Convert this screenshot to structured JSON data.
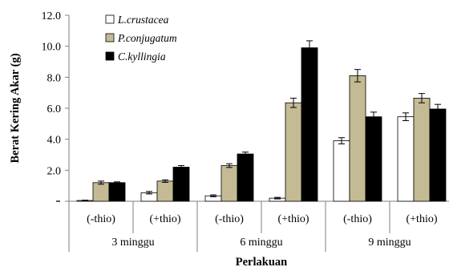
{
  "chart_data": {
    "type": "bar",
    "ylabel": "Berat Kering Akar (g)",
    "xlabel": "Perlakuan",
    "ylim": [
      0,
      12
    ],
    "yticks": [
      0,
      2,
      4,
      6,
      8,
      10,
      12
    ],
    "ytick_labels": [
      "-",
      "2.0",
      "4.0",
      "6.0",
      "8.0",
      "10.0",
      "12.0"
    ],
    "grid": false,
    "legend_position": "top-left",
    "groups": [
      {
        "label": "3 minggu",
        "categories": [
          "(-thio)",
          "(+thio)"
        ]
      },
      {
        "label": "6 minggu",
        "categories": [
          "(-thio)",
          "(+thio)"
        ]
      },
      {
        "label": "9 minggu",
        "categories": [
          "(-thio)",
          "(+thio)"
        ]
      }
    ],
    "series": [
      {
        "name": "L.crustacea",
        "color": "#ffffff",
        "values": [
          0.05,
          0.55,
          0.35,
          0.2,
          3.9,
          5.45
        ],
        "errors": [
          0.02,
          0.08,
          0.06,
          0.05,
          0.2,
          0.25
        ]
      },
      {
        "name": "P.conjugatum",
        "color": "#c4bb94",
        "values": [
          1.2,
          1.3,
          2.3,
          6.35,
          8.1,
          6.65
        ],
        "errors": [
          0.1,
          0.08,
          0.12,
          0.3,
          0.4,
          0.3
        ]
      },
      {
        "name": "C.kyllingia",
        "color": "#000000",
        "values": [
          1.2,
          2.2,
          3.05,
          9.9,
          5.45,
          5.95
        ],
        "errors": [
          0.05,
          0.1,
          0.12,
          0.45,
          0.3,
          0.3
        ]
      }
    ]
  }
}
